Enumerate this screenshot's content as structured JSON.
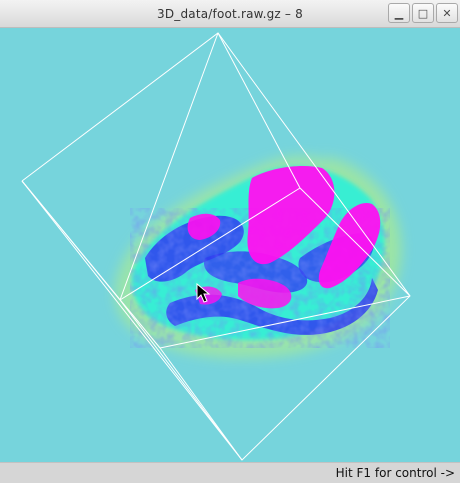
{
  "window": {
    "title": "3D_data/foot.raw.gz – 8",
    "buttons": {
      "minimize": "▁",
      "maximize": "□",
      "close": "✕"
    }
  },
  "viewport": {
    "background": "#76d4dc",
    "colors": {
      "bounding_box": "#ffffff",
      "halo": "#9fe6a2",
      "mid": "#2df0d8",
      "blue": "#2f3cf0",
      "magenta": "#ff10f0"
    }
  },
  "statusbar": {
    "hint": "Hit F1 for control ->"
  }
}
